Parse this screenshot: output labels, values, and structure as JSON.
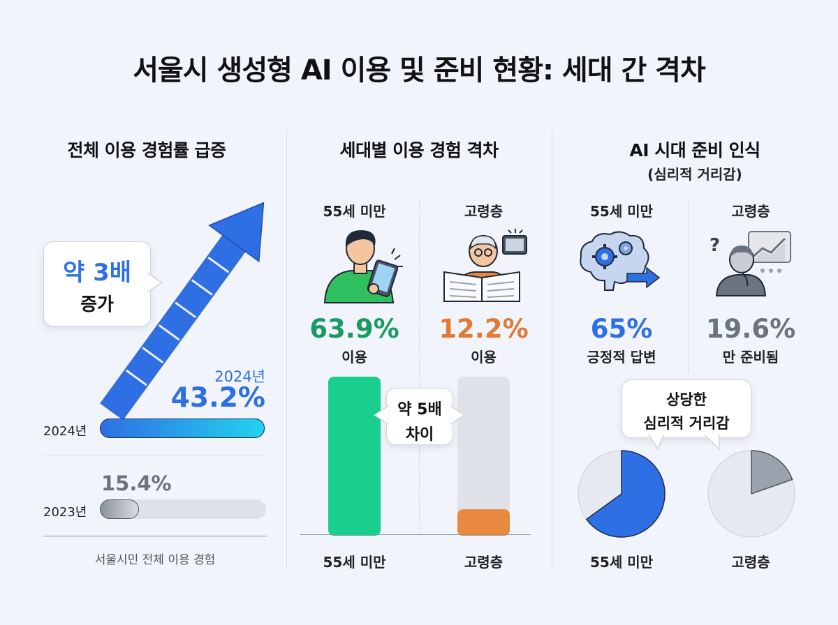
{
  "title": "서울시 생성형 AI 이용 및 준비 현황: 세대 간 격차",
  "panel1": {
    "title": "전체 이용 경험률 급증",
    "callout_big": "약 3배",
    "callout_small": "증가",
    "value_2024_year": "2024년",
    "value_2024": "43.2%",
    "value_2023": "15.4%",
    "bar_label_2024": "2024년",
    "bar_label_2023": "2023년",
    "caption": "서울시민 전체 이용 경험",
    "colors": {
      "bar_2024": "#2f6fe4",
      "bar_2024_end": "#22d3ee",
      "bar_2023": "#9aa2ad",
      "track": "#dde2ea"
    }
  },
  "panel2": {
    "title": "세대별 이용 경험 격차",
    "group_young": "55세 미만",
    "group_old": "고령층",
    "young_value": "63.9%",
    "young_label": "이용",
    "old_value": "12.2%",
    "old_label": "이용",
    "callout_line1": "약 5배",
    "callout_line2": "차이",
    "axis_young": "55세 미만",
    "axis_old": "고령층",
    "colors": {
      "young": "#19cf8e",
      "old": "#e9893f",
      "track": "#dfe2e8"
    }
  },
  "panel3": {
    "title": "AI 시대 준비 인식",
    "subtitle": "(심리적 거리감)",
    "group_young": "55세 미만",
    "group_old": "고령층",
    "young_value": "65%",
    "young_label": "긍정적 답변",
    "old_value": "19.6%",
    "old_label": "만 준비됨",
    "callout_line1": "상당한",
    "callout_line2": "심리적 거리감",
    "axis_young": "55세 미만",
    "axis_old": "고령층",
    "colors": {
      "young": "#2f6fe4",
      "old": "#9aa2ad",
      "track": "#e6e9ef"
    }
  },
  "chart_data": [
    {
      "type": "bar",
      "title": "전체 이용 경험률 급증",
      "categories": [
        "2023년",
        "2024년"
      ],
      "values": [
        15.4,
        43.2
      ],
      "unit": "%",
      "annotation": "약 3배 증가",
      "xlabel": "서울시민 전체 이용 경험"
    },
    {
      "type": "bar",
      "title": "세대별 이용 경험 격차",
      "categories": [
        "55세 미만",
        "고령층"
      ],
      "values": [
        63.9,
        12.2
      ],
      "unit": "%",
      "annotation": "약 5배 차이"
    },
    {
      "type": "pie",
      "title": "AI 시대 준비 인식",
      "categories": [
        "55세 미만",
        "고령층"
      ],
      "values": [
        65,
        19.6
      ],
      "unit": "%",
      "annotation": "상당한 심리적 거리감"
    }
  ]
}
